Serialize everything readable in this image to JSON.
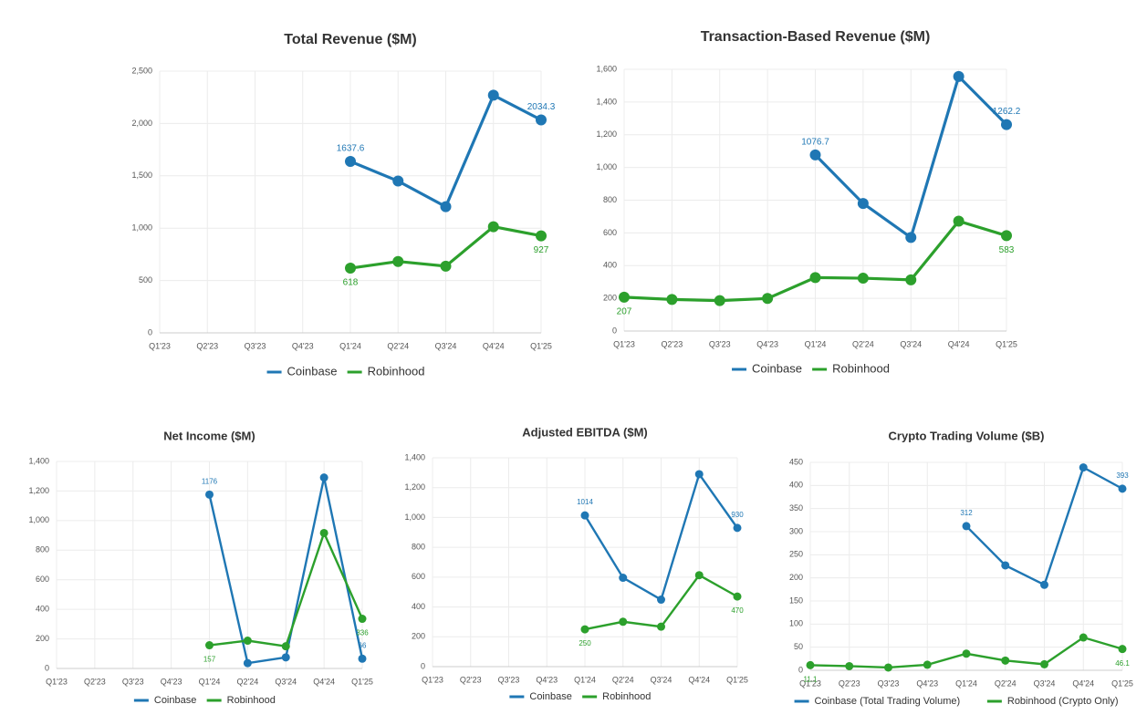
{
  "chart_data": [
    {
      "type": "line",
      "title": "Total Revenue ($M)",
      "categories": [
        "Q1'23",
        "Q2'23",
        "Q3'23",
        "Q4'23",
        "Q1'24",
        "Q2'24",
        "Q3'24",
        "Q4'24",
        "Q1'25"
      ],
      "series": [
        {
          "name": "Coinbase",
          "color": "#1f77b4",
          "values": [
            null,
            null,
            null,
            null,
            1637.6,
            1450,
            1205,
            2270,
            2034.3
          ],
          "value_labels": [
            null,
            null,
            null,
            null,
            "1637.6",
            null,
            null,
            null,
            "2034.3"
          ]
        },
        {
          "name": "Robinhood",
          "color": "#2ca02c",
          "values": [
            null,
            null,
            null,
            null,
            618,
            682,
            637,
            1014,
            927
          ],
          "value_labels": [
            null,
            null,
            null,
            null,
            "618",
            null,
            null,
            null,
            "927"
          ]
        }
      ],
      "ylim": [
        0,
        2500
      ],
      "yticks": [
        0,
        500,
        {
          "value": 1000,
          "label": "1,000"
        },
        {
          "value": 1500,
          "label": "1,500"
        },
        {
          "value": 2000,
          "label": "2,000"
        },
        {
          "value": 2500,
          "label": "2,500"
        }
      ],
      "grid": true,
      "legend": "bottom"
    },
    {
      "type": "line",
      "title": "Transaction-Based Revenue ($M)",
      "categories": [
        "Q1'23",
        "Q2'23",
        "Q3'23",
        "Q4'23",
        "Q1'24",
        "Q2'24",
        "Q3'24",
        "Q4'24",
        "Q1'25"
      ],
      "series": [
        {
          "name": "Coinbase",
          "color": "#1f77b4",
          "values": [
            null,
            null,
            null,
            null,
            1076.7,
            780,
            572,
            1556,
            1262.2
          ],
          "value_labels": [
            null,
            null,
            null,
            null,
            "1076.7",
            null,
            null,
            null,
            "1262.2"
          ]
        },
        {
          "name": "Robinhood",
          "color": "#2ca02c",
          "values": [
            207,
            193,
            186,
            199,
            327,
            323,
            313,
            672,
            583
          ],
          "value_labels": [
            "207",
            null,
            null,
            null,
            null,
            null,
            null,
            null,
            "583"
          ]
        }
      ],
      "ylim": [
        0,
        1600
      ],
      "yticks": [
        0,
        200,
        400,
        600,
        800,
        {
          "value": 1000,
          "label": "1,000"
        },
        {
          "value": 1200,
          "label": "1,200"
        },
        {
          "value": 1400,
          "label": "1,400"
        },
        {
          "value": 1600,
          "label": "1,600"
        }
      ],
      "grid": true,
      "legend": "bottom"
    },
    {
      "type": "line",
      "title": "Net Income ($M)",
      "categories": [
        "Q1'23",
        "Q2'23",
        "Q3'23",
        "Q4'23",
        "Q1'24",
        "Q2'24",
        "Q3'24",
        "Q4'24",
        "Q1'25"
      ],
      "series": [
        {
          "name": "Coinbase",
          "color": "#1f77b4",
          "values": [
            null,
            null,
            null,
            null,
            1176,
            36,
            75,
            1291,
            66
          ],
          "value_labels": [
            null,
            null,
            null,
            null,
            "1176",
            null,
            null,
            null,
            "66"
          ]
        },
        {
          "name": "Robinhood",
          "color": "#2ca02c",
          "values": [
            null,
            null,
            null,
            null,
            157,
            188,
            150,
            916,
            336
          ],
          "value_labels": [
            null,
            null,
            null,
            null,
            "157",
            null,
            null,
            null,
            "336"
          ]
        }
      ],
      "ylim": [
        0,
        1400
      ],
      "yticks": [
        0,
        200,
        400,
        600,
        800,
        {
          "value": 1000,
          "label": "1,000"
        },
        {
          "value": 1200,
          "label": "1,200"
        },
        {
          "value": 1400,
          "label": "1,400"
        }
      ],
      "grid": true,
      "legend": "bottom"
    },
    {
      "type": "line",
      "title": "Adjusted EBITDA ($M)",
      "categories": [
        "Q1'23",
        "Q2'23",
        "Q3'23",
        "Q4'23",
        "Q1'24",
        "Q2'24",
        "Q3'24",
        "Q4'24",
        "Q1'25"
      ],
      "series": [
        {
          "name": "Coinbase",
          "color": "#1f77b4",
          "values": [
            null,
            null,
            null,
            null,
            1014,
            596,
            449,
            1290,
            930
          ],
          "value_labels": [
            null,
            null,
            null,
            null,
            "1014",
            null,
            null,
            null,
            "930"
          ]
        },
        {
          "name": "Robinhood",
          "color": "#2ca02c",
          "values": [
            null,
            null,
            null,
            null,
            250,
            301,
            268,
            613,
            470
          ],
          "value_labels": [
            null,
            null,
            null,
            null,
            "250",
            null,
            null,
            null,
            "470"
          ]
        }
      ],
      "ylim": [
        0,
        1400
      ],
      "yticks": [
        0,
        200,
        400,
        600,
        800,
        {
          "value": 1000,
          "label": "1,000"
        },
        {
          "value": 1200,
          "label": "1,200"
        },
        {
          "value": 1400,
          "label": "1,400"
        }
      ],
      "grid": true,
      "legend": "bottom"
    },
    {
      "type": "line",
      "title": "Crypto Trading Volume ($B)",
      "categories": [
        "Q1'23",
        "Q2'23",
        "Q3'23",
        "Q4'23",
        "Q1'24",
        "Q2'24",
        "Q3'24",
        "Q4'24",
        "Q1'25"
      ],
      "series": [
        {
          "name": "Coinbase (Total Trading Volume)",
          "color": "#1f77b4",
          "values": [
            null,
            null,
            null,
            null,
            312,
            227,
            185,
            439,
            393
          ],
          "value_labels": [
            null,
            null,
            null,
            null,
            "312",
            null,
            null,
            null,
            "393"
          ]
        },
        {
          "name": "Robinhood (Crypto Only)",
          "color": "#2ca02c",
          "values": [
            11.1,
            9,
            6,
            12,
            36,
            21,
            13,
            71,
            46.1
          ],
          "value_labels": [
            "11.1",
            null,
            null,
            null,
            null,
            null,
            null,
            null,
            "46.1"
          ]
        }
      ],
      "ylim": [
        0,
        450
      ],
      "yticks": [
        0,
        50,
        100,
        150,
        200,
        250,
        300,
        350,
        400,
        450
      ],
      "grid": true,
      "legend": "bottom"
    }
  ]
}
